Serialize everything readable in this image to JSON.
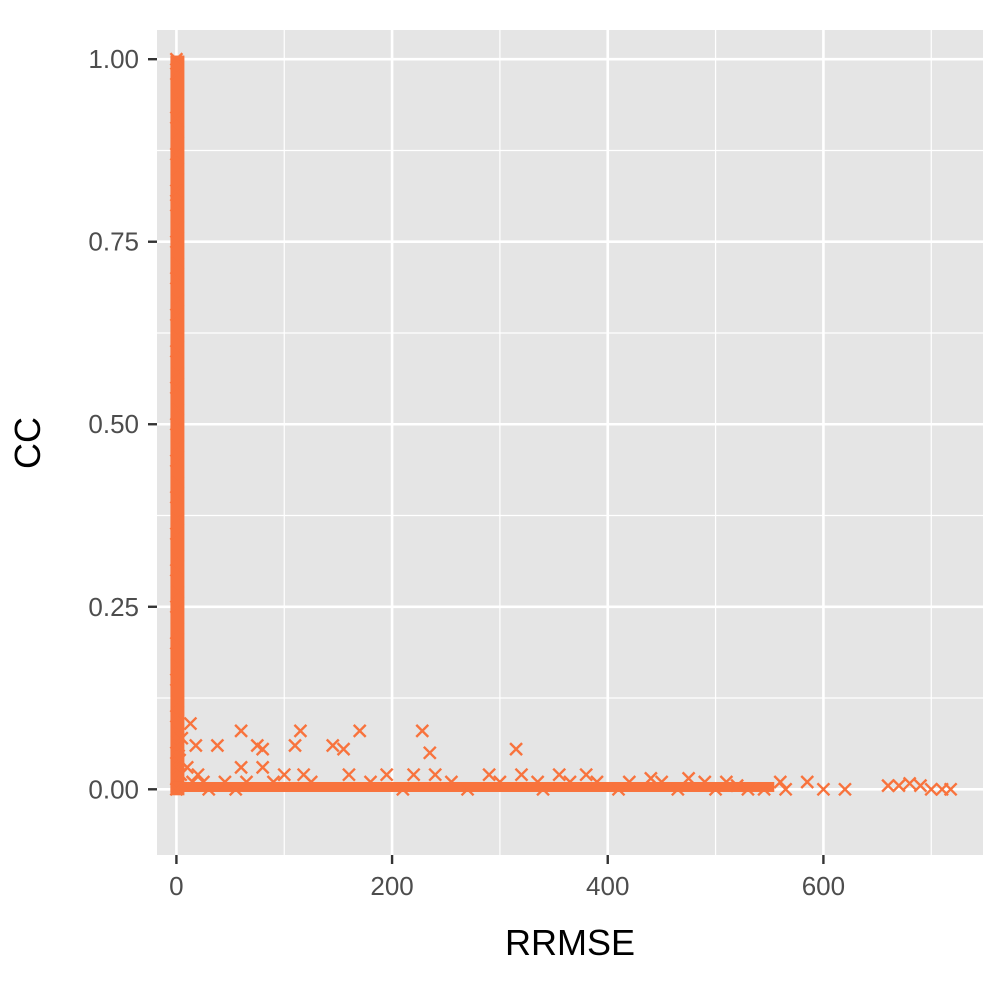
{
  "chart_data": {
    "type": "scatter",
    "title": "",
    "xlabel": "RRMSE",
    "ylabel": "CC",
    "xlim": [
      -18,
      748
    ],
    "ylim": [
      -0.09,
      1.04
    ],
    "x_ticks": [
      0,
      200,
      400,
      600
    ],
    "x_tick_labels": [
      "0",
      "200",
      "400",
      "600"
    ],
    "y_ticks": [
      0,
      0.25,
      0.5,
      0.75,
      1.0
    ],
    "y_tick_labels": [
      "0.00",
      "0.25",
      "0.50",
      "0.75",
      "1.00"
    ],
    "grid": true,
    "legend": "none",
    "marker": "x",
    "colors": {
      "panel": "#e5e5e5",
      "grid": "#ffffff",
      "points": "#f8733d",
      "ticks": "#4d4d4d"
    },
    "series": [
      {
        "points": [
          [
            0,
            1.0
          ],
          [
            0,
            0.98
          ],
          [
            1,
            0.95
          ],
          [
            0,
            0.92
          ],
          [
            1,
            0.9
          ],
          [
            0,
            0.87
          ],
          [
            1,
            0.85
          ],
          [
            0,
            0.82
          ],
          [
            0,
            0.8
          ],
          [
            1,
            0.77
          ],
          [
            0,
            0.75
          ],
          [
            1,
            0.72
          ],
          [
            0,
            0.7
          ],
          [
            1,
            0.67
          ],
          [
            0,
            0.65
          ],
          [
            1,
            0.62
          ],
          [
            0,
            0.6
          ],
          [
            1,
            0.57
          ],
          [
            0,
            0.55
          ],
          [
            1,
            0.52
          ],
          [
            0,
            0.5
          ],
          [
            1,
            0.47
          ],
          [
            0,
            0.45
          ],
          [
            1,
            0.42
          ],
          [
            0,
            0.4
          ],
          [
            1,
            0.37
          ],
          [
            0,
            0.35
          ],
          [
            1,
            0.32
          ],
          [
            0,
            0.3
          ],
          [
            1,
            0.27
          ],
          [
            0,
            0.25
          ],
          [
            1,
            0.22
          ],
          [
            0,
            0.2
          ],
          [
            1,
            0.17
          ],
          [
            0,
            0.15
          ],
          [
            1,
            0.12
          ],
          [
            0,
            0.1
          ],
          [
            1,
            0.08
          ],
          [
            0,
            0.05
          ],
          [
            1,
            0.03
          ],
          [
            0,
            0.0
          ],
          [
            2,
            0.06
          ],
          [
            3,
            0.04
          ],
          [
            4,
            0.02
          ],
          [
            5,
            0.07
          ],
          [
            13,
            0.09
          ],
          [
            18,
            0.06
          ],
          [
            10,
            0.03
          ],
          [
            20,
            0.02
          ],
          [
            15,
            0.01
          ],
          [
            25,
            0.01
          ],
          [
            30,
            0.0
          ],
          [
            38,
            0.06
          ],
          [
            45,
            0.01
          ],
          [
            55,
            0.0
          ],
          [
            60,
            0.08
          ],
          [
            60,
            0.03
          ],
          [
            65,
            0.01
          ],
          [
            75,
            0.06
          ],
          [
            80,
            0.055
          ],
          [
            80,
            0.03
          ],
          [
            90,
            0.01
          ],
          [
            100,
            0.02
          ],
          [
            110,
            0.06
          ],
          [
            115,
            0.08
          ],
          [
            118,
            0.02
          ],
          [
            125,
            0.01
          ],
          [
            145,
            0.06
          ],
          [
            155,
            0.055
          ],
          [
            160,
            0.02
          ],
          [
            170,
            0.08
          ],
          [
            180,
            0.01
          ],
          [
            195,
            0.02
          ],
          [
            210,
            0.0
          ],
          [
            220,
            0.02
          ],
          [
            228,
            0.08
          ],
          [
            235,
            0.05
          ],
          [
            240,
            0.02
          ],
          [
            255,
            0.01
          ],
          [
            270,
            0.0
          ],
          [
            290,
            0.02
          ],
          [
            300,
            0.01
          ],
          [
            315,
            0.055
          ],
          [
            320,
            0.02
          ],
          [
            335,
            0.01
          ],
          [
            340,
            0.0
          ],
          [
            355,
            0.02
          ],
          [
            365,
            0.01
          ],
          [
            380,
            0.02
          ],
          [
            390,
            0.01
          ],
          [
            410,
            0.0
          ],
          [
            420,
            0.01
          ],
          [
            440,
            0.015
          ],
          [
            450,
            0.01
          ],
          [
            465,
            0.0
          ],
          [
            475,
            0.015
          ],
          [
            490,
            0.01
          ],
          [
            500,
            0.0
          ],
          [
            510,
            0.01
          ],
          [
            520,
            0.005
          ],
          [
            530,
            0.0
          ],
          [
            545,
            0.0
          ],
          [
            560,
            0.01
          ],
          [
            565,
            0.0
          ],
          [
            585,
            0.01
          ],
          [
            600,
            0.0
          ],
          [
            620,
            0.0
          ],
          [
            660,
            0.005
          ],
          [
            670,
            0.005
          ],
          [
            680,
            0.008
          ],
          [
            690,
            0.005
          ],
          [
            700,
            0.0
          ],
          [
            710,
            0.0
          ],
          [
            718,
            0.0
          ]
        ]
      }
    ]
  }
}
